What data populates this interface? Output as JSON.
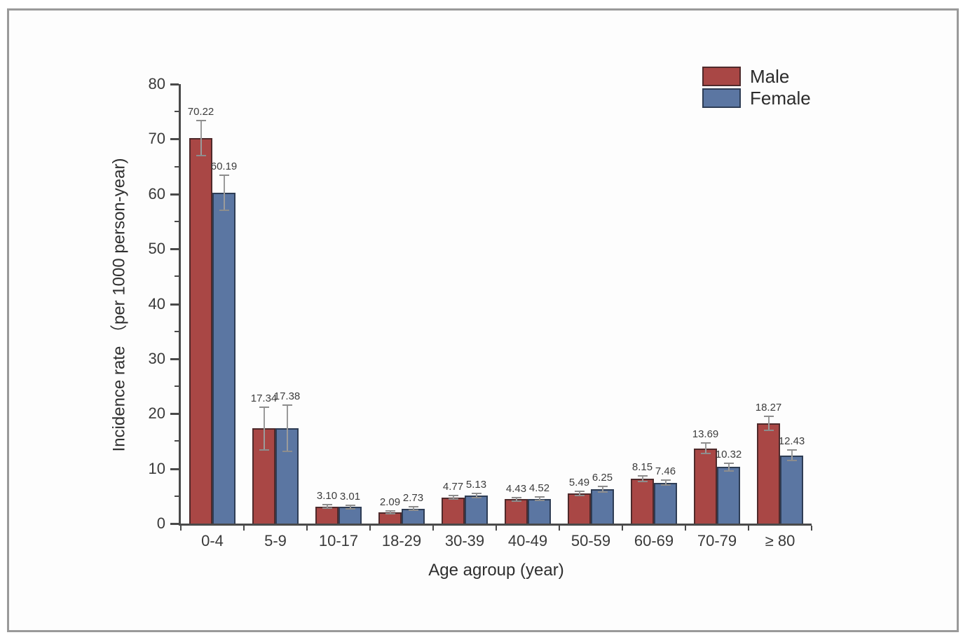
{
  "chart_data": {
    "type": "bar",
    "categories": [
      "0-4",
      "5-9",
      "10-17",
      "18-29",
      "30-39",
      "40-49",
      "50-59",
      "60-69",
      "70-79",
      "≥ 80"
    ],
    "series": [
      {
        "name": "Male",
        "color": "#a94745",
        "border_color": "#4f2a2b",
        "values": [
          70.22,
          17.34,
          3.1,
          2.09,
          4.77,
          4.43,
          5.49,
          8.15,
          13.69,
          18.27
        ],
        "errors": [
          3.2,
          3.9,
          0.3,
          0.25,
          0.35,
          0.3,
          0.4,
          0.55,
          0.95,
          1.3
        ]
      },
      {
        "name": "Female",
        "color": "#5b76a2",
        "border_color": "#2e3d55",
        "values": [
          60.19,
          17.38,
          3.01,
          2.73,
          5.13,
          4.52,
          6.25,
          7.46,
          10.32,
          12.43
        ],
        "errors": [
          3.2,
          4.2,
          0.3,
          0.3,
          0.35,
          0.3,
          0.45,
          0.5,
          0.7,
          1.0
        ]
      }
    ],
    "xlabel": "Age agroup (year)",
    "ylabel": "Incidence rate （per 1000 person-year)",
    "ylim": [
      0,
      80
    ],
    "ytick_major_step": 10,
    "ytick_minor_step": 5,
    "grid": false,
    "legend_position": "top-right",
    "error_bar_color": "#9b9b9b",
    "axis_color": "#4a4a4a"
  }
}
